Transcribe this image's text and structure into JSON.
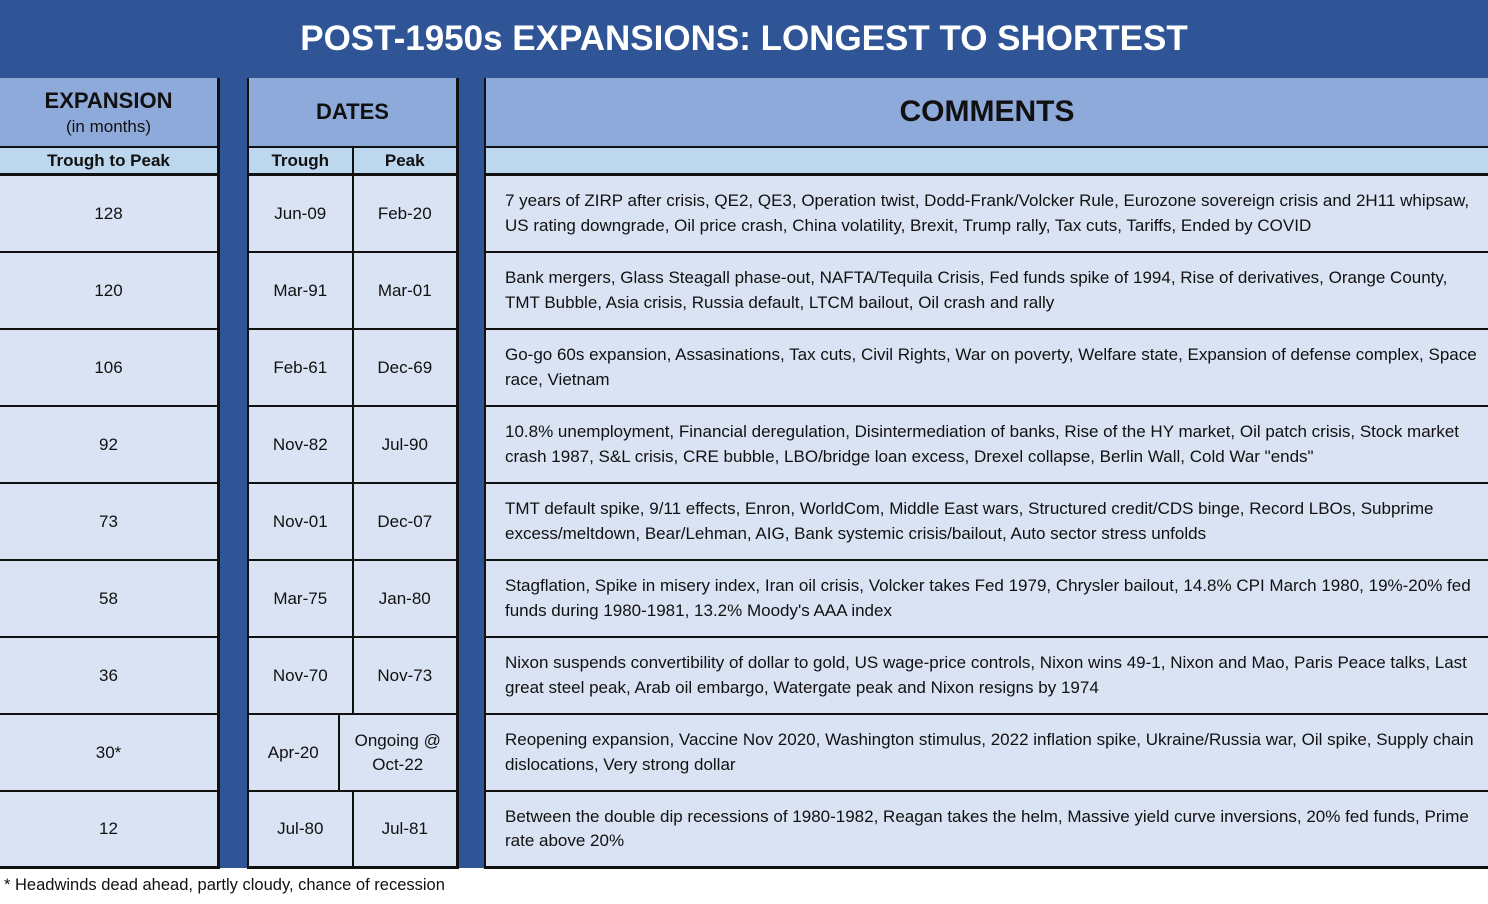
{
  "title": "POST-1950s EXPANSIONS: LONGEST TO SHORTEST",
  "headers": {
    "expansion": "EXPANSION",
    "expansion_sub": "(in months)",
    "expansion_col": "Trough to Peak",
    "dates": "DATES",
    "trough": "Trough",
    "peak": "Peak",
    "comments": "COMMENTS"
  },
  "rows": [
    {
      "months": "128",
      "trough": "Jun-09",
      "peak": "Feb-20",
      "comment": "7 years of ZIRP after crisis, QE2, QE3, Operation twist, Dodd-Frank/Volcker Rule, Eurozone sovereign crisis and 2H11 whipsaw, US rating downgrade, Oil price crash, China volatility, Brexit, Trump rally, Tax cuts, Tariffs, Ended by COVID"
    },
    {
      "months": "120",
      "trough": "Mar-91",
      "peak": "Mar-01",
      "comment": "Bank mergers, Glass Steagall phase-out, NAFTA/Tequila Crisis, Fed funds spike of 1994, Rise of derivatives, Orange County, TMT Bubble, Asia crisis, Russia default, LTCM bailout, Oil crash and rally"
    },
    {
      "months": "106",
      "trough": "Feb-61",
      "peak": "Dec-69",
      "comment": "Go-go 60s expansion, Assasinations, Tax cuts, Civil Rights, War on poverty, Welfare state, Expansion of defense complex, Space race, Vietnam"
    },
    {
      "months": "92",
      "trough": "Nov-82",
      "peak": "Jul-90",
      "comment": "10.8% unemployment, Financial deregulation, Disintermediation of banks, Rise of the HY market, Oil patch crisis, Stock market crash 1987, S&L crisis, CRE bubble, LBO/bridge loan excess, Drexel collapse, Berlin Wall, Cold War \"ends\""
    },
    {
      "months": "73",
      "trough": "Nov-01",
      "peak": "Dec-07",
      "comment": "TMT default spike, 9/11 effects, Enron, WorldCom, Middle East wars, Structured credit/CDS binge, Record LBOs, Subprime excess/meltdown, Bear/Lehman, AIG, Bank systemic crisis/bailout, Auto sector stress unfolds"
    },
    {
      "months": "58",
      "trough": "Mar-75",
      "peak": "Jan-80",
      "comment": "Stagflation, Spike in misery index, Iran oil crisis, Volcker takes Fed 1979, Chrysler bailout, 14.8% CPI March 1980, 19%-20% fed funds during 1980-1981, 13.2% Moody's AAA index"
    },
    {
      "months": "36",
      "trough": "Nov-70",
      "peak": "Nov-73",
      "comment": "Nixon suspends convertibility of dollar to gold, US wage-price controls, Nixon wins 49-1, Nixon and Mao, Paris Peace talks, Last great steel peak, Arab oil embargo, Watergate peak and Nixon resigns by 1974"
    },
    {
      "months": "30*",
      "trough": "Apr-20",
      "peak": "Ongoing @ Oct-22",
      "comment": "Reopening expansion, Vaccine Nov 2020, Washington stimulus, 2022 inflation spike, Ukraine/Russia war, Oil spike, Supply chain dislocations, Very strong dollar"
    },
    {
      "months": "12",
      "trough": "Jul-80",
      "peak": "Jul-81",
      "comment": "Between the double dip recessions of 1980-1982, Reagan takes the helm, Massive yield curve inversions, 20% fed funds, Prime rate above 20%"
    }
  ],
  "footnote": "* Headwinds dead ahead, partly cloudy, chance of recession",
  "colors": {
    "title_bg": "#2f5597",
    "header_bg": "#8eaadb",
    "subheader_bg": "#bdd7ee",
    "row_bg": "#dae3f3"
  }
}
